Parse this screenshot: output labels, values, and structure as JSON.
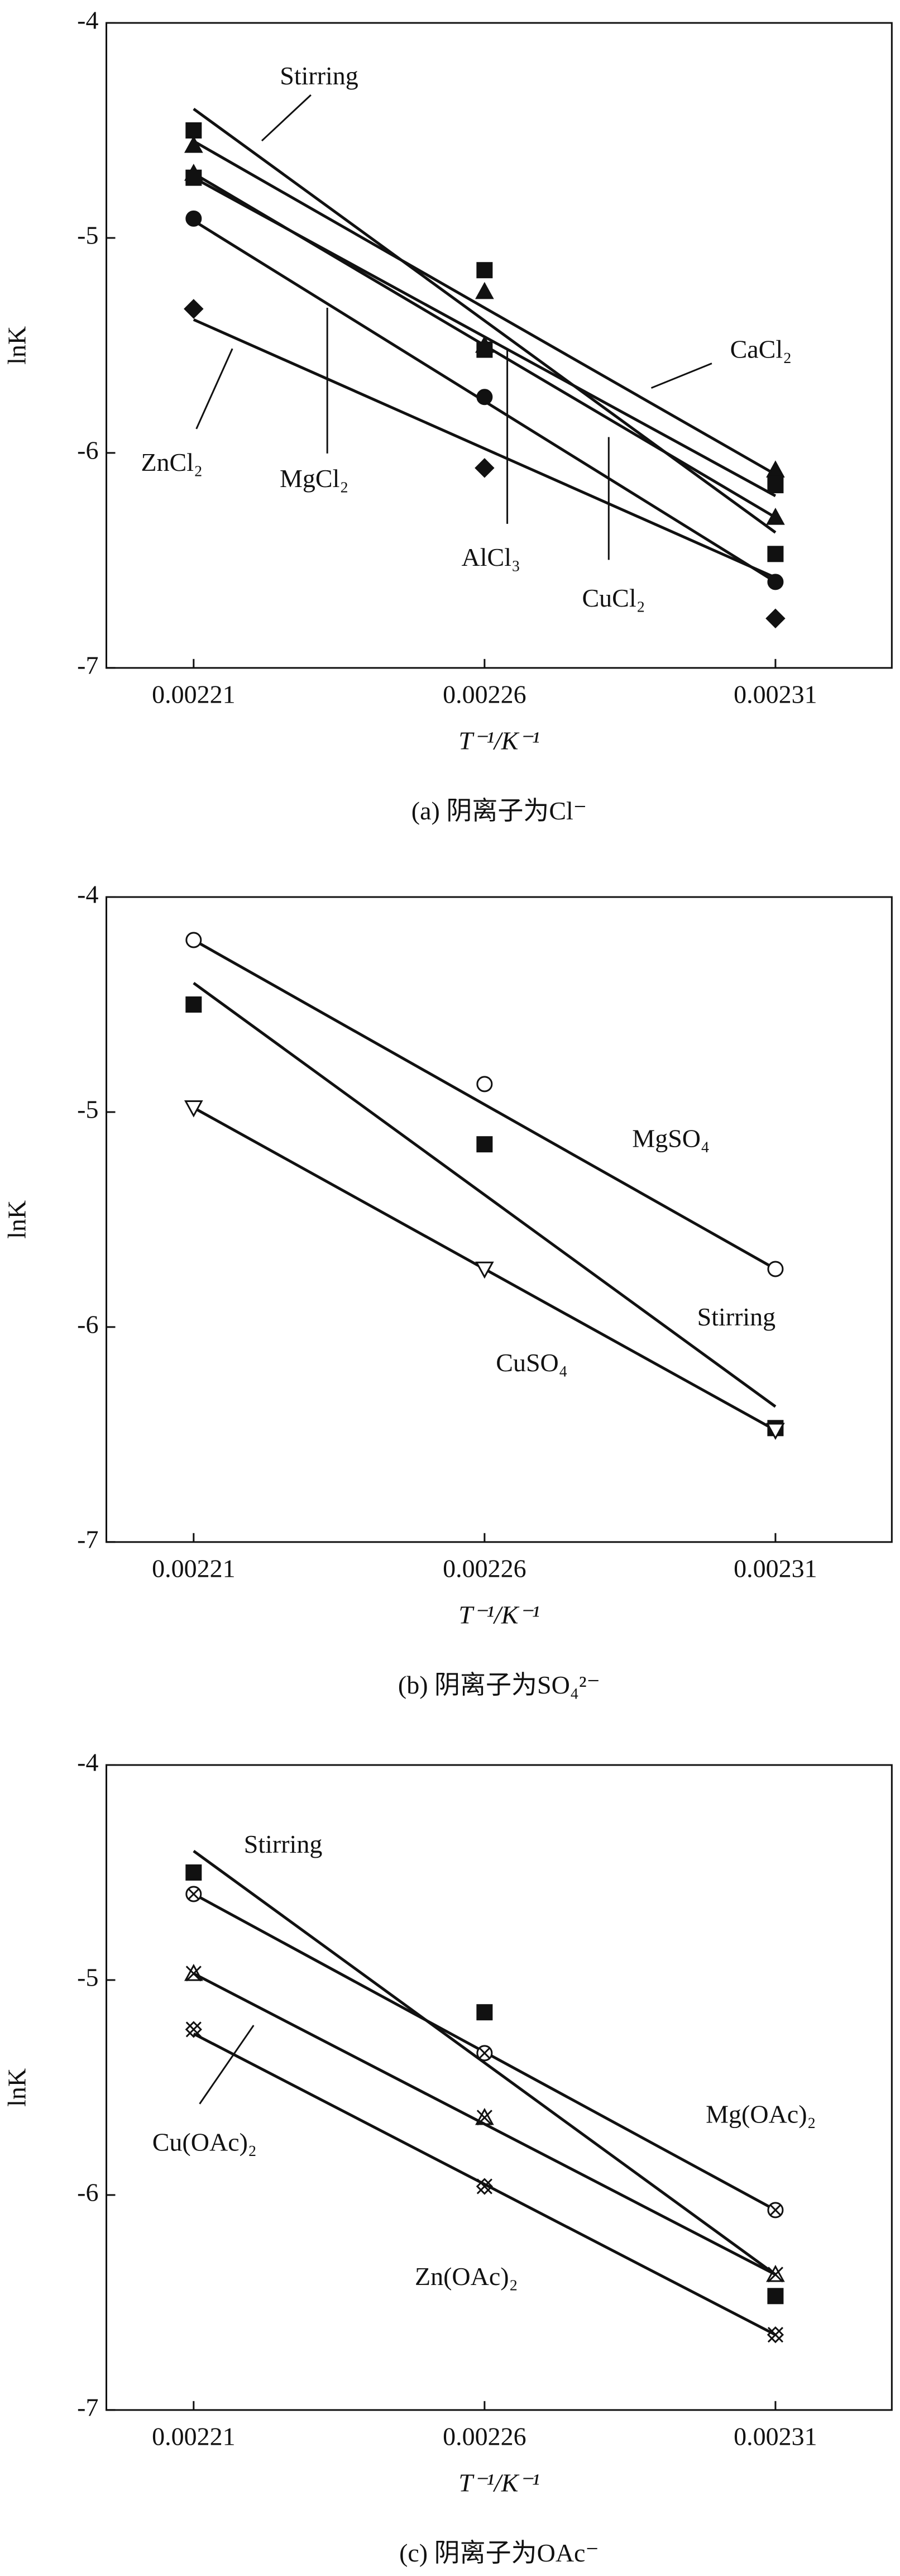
{
  "chart_data": [
    {
      "type": "scatter",
      "caption": "(a) 阴离子为Cl⁻",
      "xlabel": "T⁻¹/K⁻¹",
      "ylabel": "lnK",
      "x": [
        0.00221,
        0.00226,
        0.00231
      ],
      "xlim": [
        0.002195,
        0.00233
      ],
      "xticks": [
        0.00221,
        0.00226,
        0.00231
      ],
      "ylim": [
        -7,
        -4
      ],
      "yticks": [
        -7,
        -6,
        -5,
        -4
      ],
      "series": [
        {
          "name": "Stirring",
          "marker": "square",
          "color": "#111",
          "values": [
            -4.5,
            -5.15,
            -6.47
          ],
          "fit": [
            -4.4,
            -6.37
          ]
        },
        {
          "name": "CaCl₂",
          "marker": "triangle",
          "color": "#111",
          "values": [
            -4.57,
            -5.25,
            -6.08
          ],
          "fit": [
            -4.55,
            -6.1
          ]
        },
        {
          "name": "MgCl₂",
          "marker": "triangle",
          "color": "#111",
          "values": [
            -4.7,
            -5.5,
            -6.3
          ],
          "fit": [
            -4.7,
            -6.3
          ]
        },
        {
          "name": "AlCl₃",
          "marker": "square",
          "color": "#111",
          "values": [
            -4.72,
            -5.52,
            -6.15
          ],
          "fit": [
            -4.72,
            -6.2
          ]
        },
        {
          "name": "CuCl₂",
          "marker": "circle",
          "color": "#111",
          "values": [
            -4.91,
            -5.74,
            -6.6
          ],
          "fit": [
            -4.92,
            -6.6
          ]
        },
        {
          "name": "ZnCl₂",
          "marker": "diamond",
          "color": "#111",
          "values": [
            -5.33,
            -6.07,
            -6.77
          ],
          "fit": [
            -5.38,
            -6.58
          ]
        }
      ]
    },
    {
      "type": "scatter",
      "caption": "(b) 阴离子为SO₄²⁻",
      "xlabel": "T⁻¹/K⁻¹",
      "ylabel": "lnK",
      "x": [
        0.00221,
        0.00226,
        0.00231
      ],
      "xlim": [
        0.002195,
        0.00233
      ],
      "xticks": [
        0.00221,
        0.00226,
        0.00231
      ],
      "ylim": [
        -7,
        -4
      ],
      "yticks": [
        -7,
        -6,
        -5,
        -4
      ],
      "series": [
        {
          "name": "MgSO₄",
          "marker": "open-circle",
          "color": "#111",
          "values": [
            -4.2,
            -4.87,
            -5.73
          ],
          "fit": [
            -4.2,
            -5.73
          ]
        },
        {
          "name": "Stirring",
          "marker": "square",
          "color": "#111",
          "values": [
            -4.5,
            -5.15,
            -6.47
          ],
          "fit": [
            -4.4,
            -6.37
          ]
        },
        {
          "name": "CuSO₄",
          "marker": "open-triangle-down",
          "color": "#111",
          "values": [
            -4.98,
            -5.73,
            -6.48
          ],
          "fit": [
            -4.98,
            -6.48
          ]
        }
      ]
    },
    {
      "type": "scatter",
      "caption": "(c) 阴离子为OAc⁻",
      "xlabel": "T⁻¹/K⁻¹",
      "ylabel": "lnK",
      "x": [
        0.00221,
        0.00226,
        0.00231
      ],
      "xlim": [
        0.002195,
        0.00233
      ],
      "xticks": [
        0.00221,
        0.00226,
        0.00231
      ],
      "ylim": [
        -7,
        -4
      ],
      "yticks": [
        -7,
        -6,
        -5,
        -4
      ],
      "series": [
        {
          "name": "Stirring",
          "marker": "square",
          "color": "#111",
          "values": [
            -4.5,
            -5.15,
            -6.47
          ],
          "fit": [
            -4.4,
            -6.37
          ]
        },
        {
          "name": "Mg(OAc)₂",
          "marker": "circle-x",
          "color": "#111",
          "values": [
            -4.6,
            -5.34,
            -6.07
          ],
          "fit": [
            -4.6,
            -6.07
          ]
        },
        {
          "name": "Cu(OAc)₂",
          "marker": "triangle-x",
          "color": "#111",
          "values": [
            -4.97,
            -5.64,
            -6.37
          ],
          "fit": [
            -4.97,
            -6.37
          ]
        },
        {
          "name": "Zn(OAc)₂",
          "marker": "x-x",
          "color": "#111",
          "values": [
            -5.23,
            -5.96,
            -6.65
          ],
          "fit": [
            -5.25,
            -6.65
          ]
        }
      ]
    }
  ]
}
